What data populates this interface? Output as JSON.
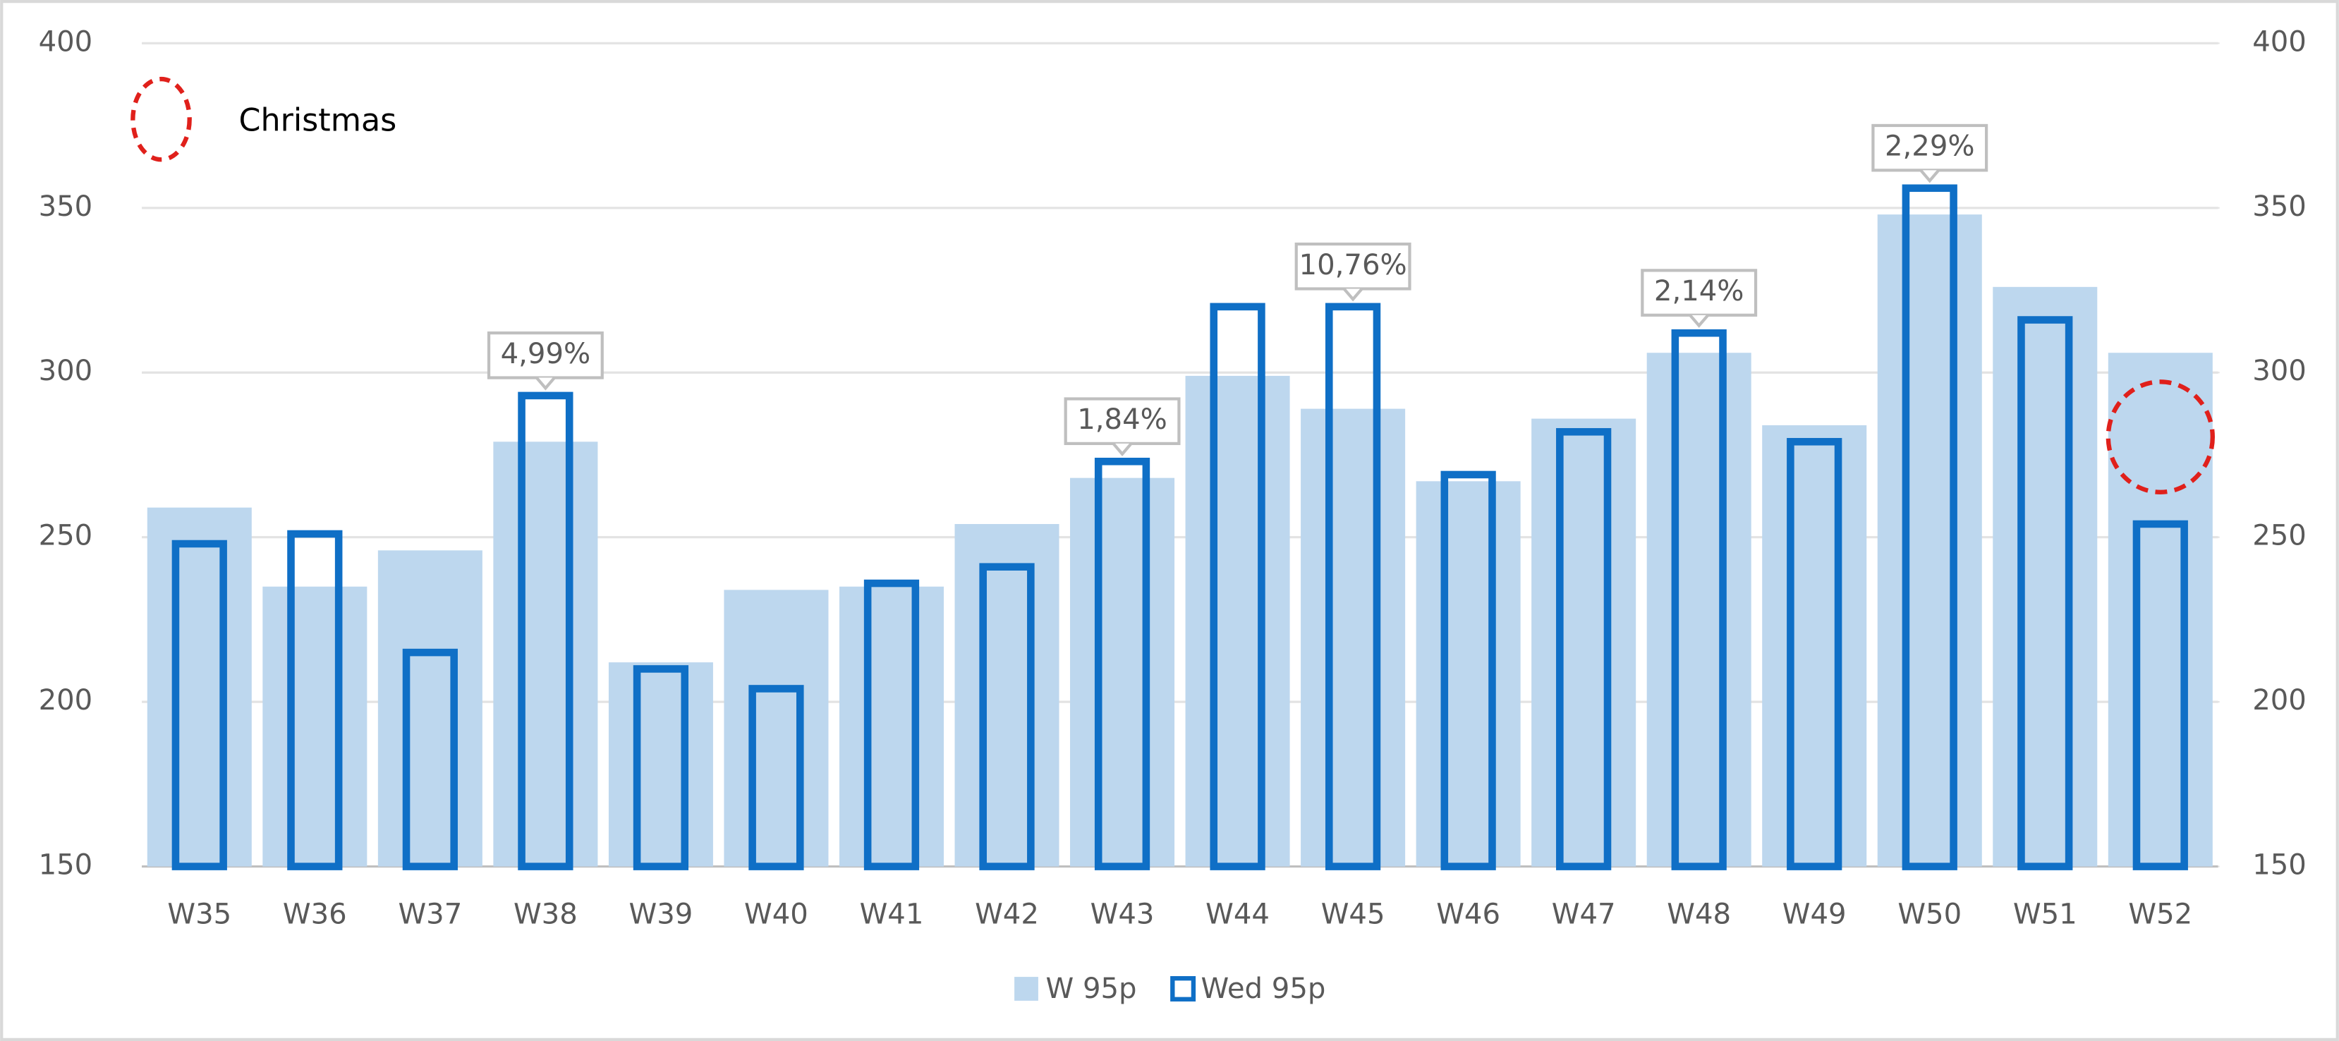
{
  "chart_data": {
    "type": "bar",
    "categories": [
      "W35",
      "W36",
      "W37",
      "W38",
      "W39",
      "W40",
      "W41",
      "W42",
      "W43",
      "W44",
      "W45",
      "W46",
      "W47",
      "W48",
      "W49",
      "W50",
      "W51",
      "W52"
    ],
    "series": [
      {
        "name": "W 95p",
        "color": "#bdd7ee",
        "style": "filled",
        "values": [
          259,
          235,
          246,
          279,
          212,
          234,
          235,
          254,
          268,
          299,
          289,
          267,
          286,
          306,
          284,
          348,
          326,
          306
        ]
      },
      {
        "name": "Wed 95p",
        "color": "#0f6fc6",
        "style": "outline",
        "axis": "y2",
        "values": [
          248,
          251,
          215,
          293,
          210,
          204,
          236,
          241,
          273,
          320,
          320,
          269,
          282,
          312,
          279,
          356,
          316,
          254
        ],
        "annotations": [
          null,
          null,
          null,
          "4,99%",
          null,
          null,
          null,
          null,
          "1,84%",
          null,
          "10,76%",
          null,
          null,
          "2,14%",
          null,
          "2,29%",
          null,
          null
        ]
      }
    ],
    "ylim": [
      150,
      400
    ],
    "yticks": [
      150,
      200,
      250,
      300,
      350,
      400
    ],
    "y2lim": [
      150,
      400
    ],
    "y2ticks": [
      150,
      200,
      250,
      300,
      350,
      400
    ],
    "grid": true,
    "legend": "bottom",
    "highlight": {
      "label": "Christmas",
      "category": "W52",
      "color": "#e0201b"
    }
  }
}
